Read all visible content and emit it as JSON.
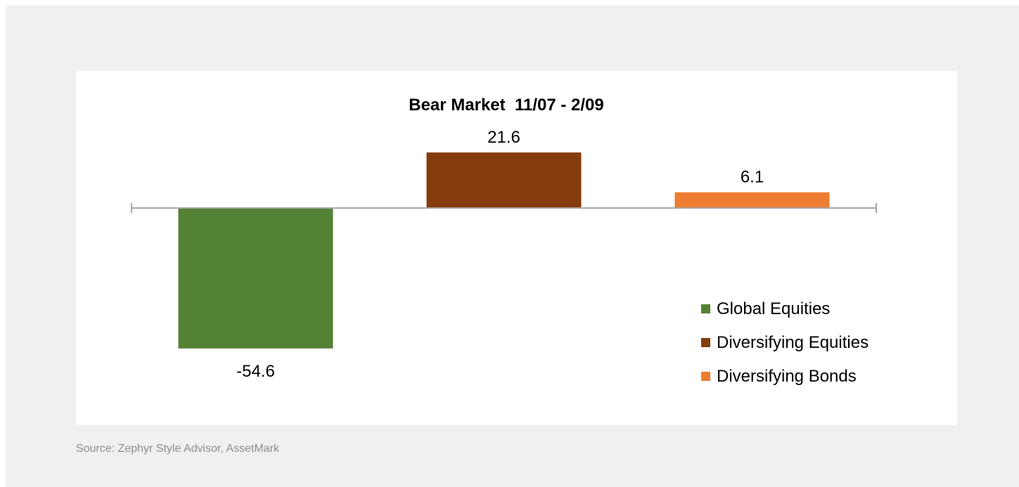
{
  "chart_data": {
    "type": "bar",
    "title": "Bear Market  11/07 - 2/09",
    "categories": [
      "Global Equities",
      "Diversifying Equities",
      "Diversifying Bonds"
    ],
    "values": [
      -54.6,
      21.6,
      6.1
    ],
    "data_labels": [
      "-54.6",
      "21.6",
      "6.1"
    ],
    "colors": [
      "#548235",
      "#843c0c",
      "#ed7d31"
    ],
    "axis_color": "#a6a6a6",
    "legend_position": "bottom-right",
    "grid": false
  },
  "footer": {
    "source": "Source: Zephyr Style Advisor, AssetMark"
  }
}
